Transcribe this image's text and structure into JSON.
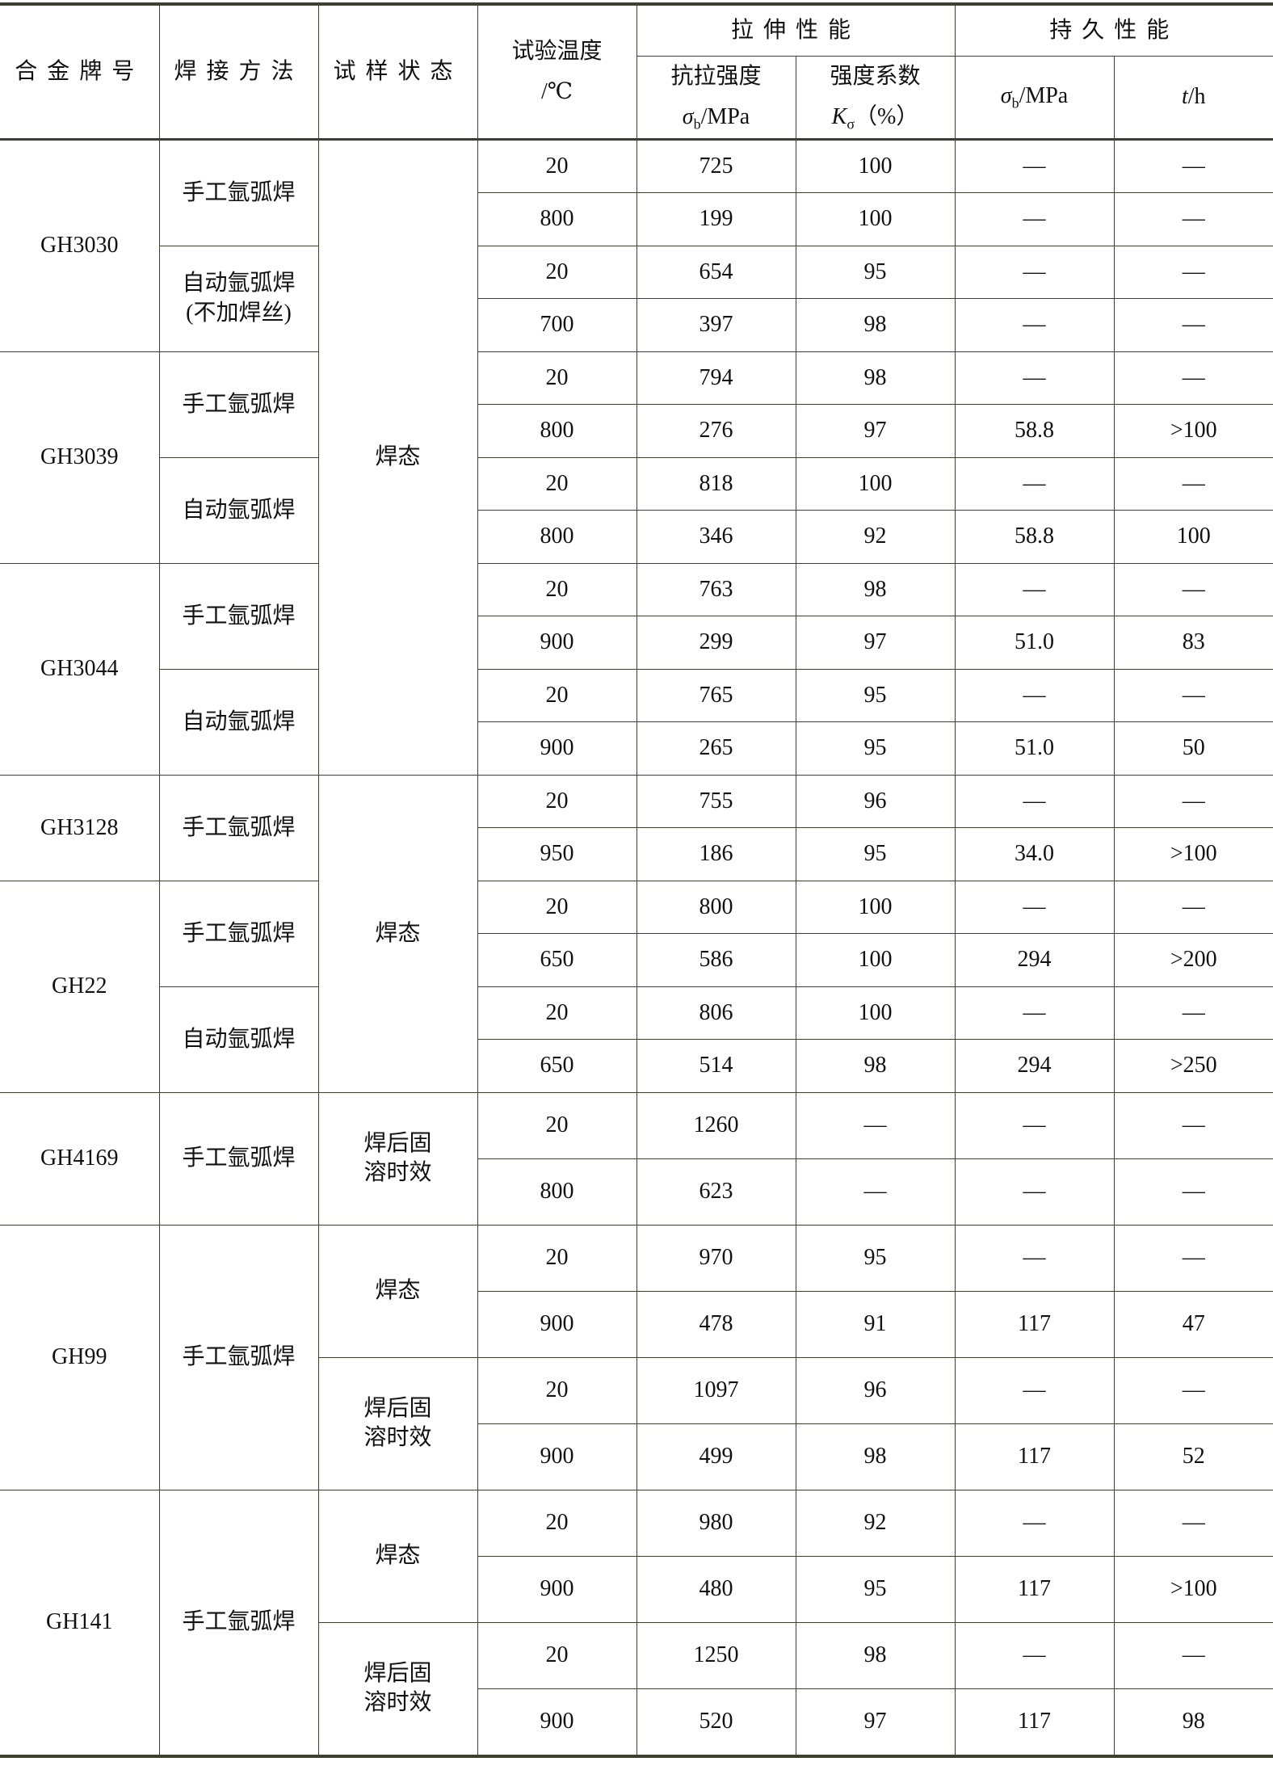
{
  "header": {
    "alloy": "合金牌号",
    "method": "焊接方法",
    "state": "试样状态",
    "temp": "试验温度",
    "temp_unit": "/℃",
    "tensile": "拉伸性能",
    "endurance": "持久性能",
    "strength": "抗拉强度",
    "strength_sym": "σ",
    "strength_sub": "b",
    "strength_unit": "/MPa",
    "coef": "强度系数",
    "coef_sym": "K",
    "coef_sub": "σ",
    "coef_unit": "（%）",
    "end_sym": "σ",
    "end_sub": "b",
    "end_unit": "/MPa",
    "time_sym": "t",
    "time_unit": "/h"
  },
  "alloys": [
    {
      "name": "GH3030",
      "methods": [
        {
          "name": "手工氩弧焊",
          "rows": [
            [
              "20",
              "725",
              "100",
              "—",
              "—"
            ],
            [
              "800",
              "199",
              "100",
              "—",
              "—"
            ]
          ]
        },
        {
          "name": "自动氩弧焊\n(不加焊丝)",
          "rows": [
            [
              "20",
              "654",
              "95",
              "—",
              "—"
            ],
            [
              "700",
              "397",
              "98",
              "—",
              "—"
            ]
          ]
        }
      ]
    },
    {
      "name": "GH3039",
      "methods": [
        {
          "name": "手工氩弧焊",
          "rows": [
            [
              "20",
              "794",
              "98",
              "—",
              "—"
            ],
            [
              "800",
              "276",
              "97",
              "58.8",
              ">100"
            ]
          ]
        },
        {
          "name": "自动氩弧焊",
          "rows": [
            [
              "20",
              "818",
              "100",
              "—",
              "—"
            ],
            [
              "800",
              "346",
              "92",
              "58.8",
              "100"
            ]
          ]
        }
      ]
    },
    {
      "name": "GH3044",
      "methods": [
        {
          "name": "手工氩弧焊",
          "rows": [
            [
              "20",
              "763",
              "98",
              "—",
              "—"
            ],
            [
              "900",
              "299",
              "97",
              "51.0",
              "83"
            ]
          ]
        },
        {
          "name": "自动氩弧焊",
          "rows": [
            [
              "20",
              "765",
              "95",
              "—",
              "—"
            ],
            [
              "900",
              "265",
              "95",
              "51.0",
              "50"
            ]
          ]
        }
      ]
    },
    {
      "name": "GH3128",
      "methods": [
        {
          "name": "手工氩弧焊",
          "rows": [
            [
              "20",
              "755",
              "96",
              "—",
              "—"
            ],
            [
              "950",
              "186",
              "95",
              "34.0",
              ">100"
            ]
          ]
        }
      ]
    },
    {
      "name": "GH22",
      "methods": [
        {
          "name": "手工氩弧焊",
          "rows": [
            [
              "20",
              "800",
              "100",
              "—",
              "—"
            ],
            [
              "650",
              "586",
              "100",
              "294",
              ">200"
            ]
          ]
        },
        {
          "name": "自动氩弧焊",
          "rows": [
            [
              "20",
              "806",
              "100",
              "—",
              "—"
            ],
            [
              "650",
              "514",
              "98",
              "294",
              ">250"
            ]
          ]
        }
      ]
    },
    {
      "name": "GH4169",
      "tall": true,
      "methods": [
        {
          "name": "手工氩弧焊",
          "rows": [
            [
              "20",
              "1260",
              "—",
              "—",
              "—"
            ],
            [
              "800",
              "623",
              "—",
              "—",
              "—"
            ]
          ]
        }
      ]
    },
    {
      "name": "GH99",
      "tall": true,
      "methods": [
        {
          "name": "手工氩弧焊",
          "rows": [
            [
              "20",
              "970",
              "95",
              "—",
              "—"
            ],
            [
              "900",
              "478",
              "91",
              "117",
              "47"
            ],
            [
              "20",
              "1097",
              "96",
              "—",
              "—"
            ],
            [
              "900",
              "499",
              "98",
              "117",
              "52"
            ]
          ]
        }
      ]
    },
    {
      "name": "GH141",
      "tall": true,
      "methods": [
        {
          "name": "手工氩弧焊",
          "rows": [
            [
              "20",
              "980",
              "92",
              "—",
              "—"
            ],
            [
              "900",
              "480",
              "95",
              "117",
              ">100"
            ],
            [
              "20",
              "1250",
              "98",
              "—",
              "—"
            ],
            [
              "900",
              "520",
              "97",
              "117",
              "98"
            ]
          ]
        }
      ]
    }
  ],
  "states": [
    {
      "label": "焊态",
      "rows": 12
    },
    {
      "label": "焊态",
      "rows": 6
    },
    {
      "label": "焊后固\n溶时效",
      "rows": 2
    },
    {
      "label": "焊态",
      "rows": 2
    },
    {
      "label": "焊后固\n溶时效",
      "rows": 2
    },
    {
      "label": "焊态",
      "rows": 2
    },
    {
      "label": "焊后固\n溶时效",
      "rows": 2
    }
  ]
}
